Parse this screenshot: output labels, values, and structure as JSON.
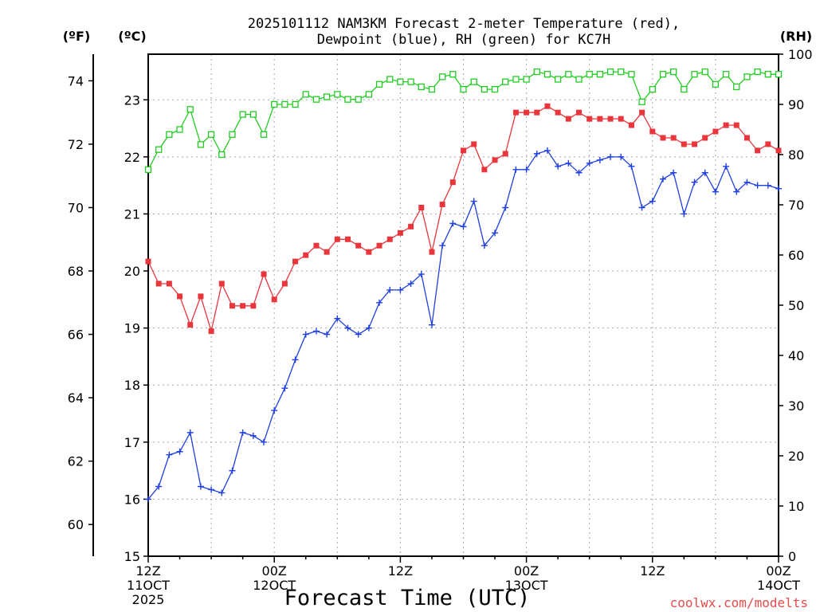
{
  "chart_data": {
    "type": "line",
    "title_line1": "2025101112 NAM3KM Forecast 2-meter Temperature (red),",
    "title_line2": "Dewpoint (blue), RH (green) for KC7H",
    "xlabel": "Forecast Time (UTC)",
    "credit": "coolwx.com/modelts",
    "left_outer_unit": "(ºF)",
    "left_inner_unit": "(ºC)",
    "right_unit": "(RH)",
    "xlim_hours": [
      0,
      60
    ],
    "ylim_c": [
      15,
      23.8
    ],
    "ylim_rh": [
      0,
      100
    ],
    "x_ticks": [
      {
        "hour": 0,
        "line1": "12Z",
        "line2": "11OCT",
        "line3": "2025"
      },
      {
        "hour": 12,
        "line1": "00Z",
        "line2": "12OCT",
        "line3": ""
      },
      {
        "hour": 24,
        "line1": "12Z",
        "line2": "",
        "line3": ""
      },
      {
        "hour": 36,
        "line1": "00Z",
        "line2": "13OCT",
        "line3": ""
      },
      {
        "hour": 48,
        "line1": "12Z",
        "line2": "",
        "line3": ""
      },
      {
        "hour": 60,
        "line1": "00Z",
        "line2": "14OCT",
        "line3": ""
      }
    ],
    "c_ticks": [
      "15",
      "16",
      "17",
      "18",
      "19",
      "20",
      "21",
      "22",
      "23"
    ],
    "f_ticks": [
      "60",
      "62",
      "64",
      "66",
      "68",
      "70",
      "72",
      "74"
    ],
    "rh_ticks": [
      "0",
      "10",
      "20",
      "30",
      "40",
      "50",
      "60",
      "70",
      "80",
      "90",
      "100"
    ],
    "grid": true,
    "series": [
      {
        "key": "temperature",
        "color": "#e8363c",
        "marker": "filled-square",
        "x": [
          0,
          1,
          2,
          3,
          4,
          5,
          6,
          7,
          8,
          9,
          10,
          11,
          12,
          13,
          14,
          15,
          16,
          17,
          18,
          19,
          20,
          21,
          22,
          23,
          24,
          25,
          26,
          27,
          28,
          29,
          30,
          31,
          32,
          33,
          34,
          35,
          36,
          37,
          38,
          39,
          40,
          41,
          42,
          43,
          44,
          45,
          46,
          47,
          48,
          49,
          50,
          51,
          52,
          53,
          54,
          55,
          56,
          57,
          58,
          59,
          60
        ],
        "values": [
          68.3,
          67.6,
          67.6,
          67.2,
          66.3,
          67.2,
          66.1,
          67.6,
          66.9,
          66.9,
          66.9,
          67.9,
          67.1,
          67.6,
          68.3,
          68.5,
          68.8,
          68.6,
          69.0,
          69.0,
          68.8,
          68.6,
          68.8,
          69.0,
          69.2,
          69.4,
          70.0,
          68.6,
          70.1,
          70.8,
          71.8,
          72.0,
          71.2,
          71.5,
          71.7,
          73.0,
          73.0,
          73.0,
          73.2,
          73.0,
          72.8,
          73.0,
          72.8,
          72.8,
          72.8,
          72.8,
          72.6,
          73.0,
          72.4,
          72.2,
          72.2,
          72.0,
          72.0,
          72.2,
          72.4,
          72.6,
          72.6,
          72.2,
          71.8,
          72.0,
          71.8
        ]
      },
      {
        "key": "dewpoint",
        "color": "#2040e0",
        "marker": "plus",
        "x": [
          0,
          1,
          2,
          3,
          4,
          5,
          6,
          7,
          8,
          9,
          10,
          11,
          12,
          13,
          14,
          15,
          16,
          17,
          18,
          19,
          20,
          21,
          22,
          23,
          24,
          25,
          26,
          27,
          28,
          29,
          30,
          31,
          32,
          33,
          34,
          35,
          36,
          37,
          38,
          39,
          40,
          41,
          42,
          43,
          44,
          45,
          46,
          47,
          48,
          49,
          50,
          51,
          52,
          53,
          54,
          55,
          56,
          57,
          58,
          59,
          60
        ],
        "values": [
          60.8,
          61.2,
          62.2,
          62.3,
          62.9,
          61.2,
          61.1,
          61.0,
          61.7,
          62.9,
          62.8,
          62.6,
          63.6,
          64.3,
          65.2,
          66.0,
          66.1,
          66.0,
          66.5,
          66.2,
          66.0,
          66.2,
          67.0,
          67.4,
          67.4,
          67.6,
          67.9,
          66.3,
          68.8,
          69.5,
          69.4,
          70.2,
          68.8,
          69.2,
          70.0,
          71.2,
          71.2,
          71.7,
          71.8,
          71.3,
          71.4,
          71.1,
          71.4,
          71.5,
          71.6,
          71.6,
          71.3,
          70.0,
          70.2,
          70.9,
          71.1,
          69.8,
          70.8,
          71.1,
          70.5,
          71.3,
          70.5,
          70.8,
          70.7,
          70.7,
          70.6
        ]
      },
      {
        "key": "rh",
        "color": "#22cc22",
        "marker": "open-square",
        "x": [
          0,
          1,
          2,
          3,
          4,
          5,
          6,
          7,
          8,
          9,
          10,
          11,
          12,
          13,
          14,
          15,
          16,
          17,
          18,
          19,
          20,
          21,
          22,
          23,
          24,
          25,
          26,
          27,
          28,
          29,
          30,
          31,
          32,
          33,
          34,
          35,
          36,
          37,
          38,
          39,
          40,
          41,
          42,
          43,
          44,
          45,
          46,
          47,
          48,
          49,
          50,
          51,
          52,
          53,
          54,
          55,
          56,
          57,
          58,
          59,
          60
        ],
        "values": [
          77,
          81,
          84,
          85,
          89,
          82,
          84,
          80,
          84,
          88,
          88,
          84,
          90,
          90,
          90,
          92,
          91,
          91.5,
          92,
          91,
          91,
          92,
          94,
          95,
          94.5,
          94.5,
          93.5,
          93,
          95.5,
          96,
          93,
          94.5,
          93,
          93,
          94.5,
          95,
          95,
          96.5,
          96,
          95,
          96,
          95,
          96,
          96,
          96.5,
          96.5,
          96,
          90.5,
          93,
          96,
          96.5,
          93,
          96,
          96.5,
          94,
          96,
          93.5,
          95.5,
          96.5,
          96,
          96
        ]
      }
    ]
  }
}
